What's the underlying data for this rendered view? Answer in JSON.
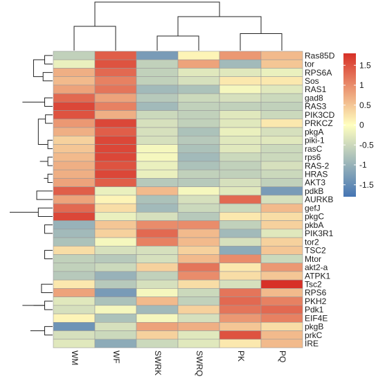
{
  "chart_data": {
    "type": "heatmap",
    "columns": [
      "WM",
      "WF",
      "SWRK",
      "SWRQ",
      "PK",
      "PQ"
    ],
    "rows": [
      "Ras85D",
      "tor",
      "RPS6A",
      "Sos",
      "RAS1",
      "gad8",
      "RAS3",
      "PIK3CD",
      "PRKCZ",
      "pkgA",
      "piki-1",
      "rasC",
      "rps6",
      "RAS-2",
      "HRAS",
      "AKT3",
      "pdkB",
      "AURKB",
      "gefJ",
      "pkgC",
      "pkbA",
      "PIK3R1",
      "tor2",
      "TSC2",
      "Mtor",
      "akt2-a",
      "ATPK1",
      "Tsc2",
      "RPS6",
      "PKH2",
      "Pdk1",
      "EIF4E",
      "pkgB",
      "prkC",
      "IRE"
    ],
    "values": [
      [
        -0.6,
        1.4,
        -1.3,
        0.1,
        0.9,
        0.6
      ],
      [
        -0.2,
        1.5,
        -0.6,
        0.8,
        -0.9,
        0.5
      ],
      [
        0.7,
        1.3,
        -0.6,
        -0.3,
        -0.3,
        -0.2
      ],
      [
        0.6,
        1.1,
        -0.6,
        -0.4,
        0.2,
        0.2
      ],
      [
        0.8,
        1.2,
        -0.9,
        -0.8,
        -0.1,
        -0.3
      ],
      [
        1.3,
        0.8,
        -0.7,
        -0.5,
        -0.4,
        -0.5
      ],
      [
        1.6,
        1.1,
        -0.9,
        -0.6,
        -0.6,
        -0.6
      ],
      [
        1.5,
        0.7,
        -0.5,
        -0.6,
        -0.3,
        -0.5
      ],
      [
        0.9,
        1.6,
        -0.4,
        -0.6,
        -0.3,
        0.2
      ],
      [
        0.7,
        1.4,
        -0.4,
        -0.8,
        -0.2,
        -0.4
      ],
      [
        0.4,
        1.6,
        -0.4,
        -0.7,
        -0.3,
        -0.3
      ],
      [
        0.5,
        1.6,
        -0.1,
        -0.8,
        -0.3,
        -0.5
      ],
      [
        0.6,
        1.6,
        -0.1,
        -0.9,
        -0.5,
        -0.5
      ],
      [
        0.7,
        1.5,
        -0.2,
        -0.8,
        -0.6,
        -0.4
      ],
      [
        0.7,
        1.6,
        -0.2,
        -0.6,
        -0.6,
        -0.5
      ],
      [
        0.8,
        1.4,
        -0.7,
        -0.7,
        -0.4,
        -0.6
      ],
      [
        1.4,
        -0.2,
        0.6,
        -0.1,
        -0.3,
        -1.3
      ],
      [
        0.8,
        0.1,
        -0.8,
        -0.4,
        1.3,
        -0.4
      ],
      [
        1.3,
        0.3,
        -0.9,
        -0.5,
        -0.5,
        0.6
      ],
      [
        1.6,
        -0.2,
        -0.4,
        -0.7,
        0.2,
        0.3
      ],
      [
        -1.0,
        0.5,
        1.0,
        1.0,
        -0.6,
        0.4
      ],
      [
        -0.9,
        0.4,
        1.3,
        0.6,
        -0.9,
        -0.3
      ],
      [
        -0.8,
        -0.1,
        1.1,
        0.6,
        -0.4,
        0.4
      ],
      [
        0.3,
        -0.4,
        -0.4,
        0.4,
        -1.1,
        0.5
      ],
      [
        -0.6,
        -0.7,
        -0.4,
        0.6,
        1.0,
        -0.5
      ],
      [
        -0.6,
        -0.5,
        0.4,
        1.2,
        0.2,
        0.9
      ],
      [
        -0.7,
        -1.0,
        -0.6,
        1.0,
        0.3,
        0.5
      ],
      [
        0.2,
        -0.7,
        -0.4,
        0.3,
        -0.4,
        1.8
      ],
      [
        0.8,
        -1.3,
        -0.1,
        -0.5,
        1.2,
        0.6
      ],
      [
        -0.3,
        -0.8,
        0.6,
        -0.6,
        1.3,
        1.1
      ],
      [
        -0.4,
        -0.1,
        -0.9,
        0.4,
        1.2,
        1.3
      ],
      [
        0.1,
        -0.8,
        -0.1,
        -0.4,
        0.9,
        1.1
      ],
      [
        -1.4,
        -0.4,
        0.8,
        0.7,
        0.5,
        0.3
      ],
      [
        -0.4,
        -0.5,
        0.4,
        -0.3,
        1.5,
        0.6
      ],
      [
        -0.3,
        -1.1,
        -0.5,
        -0.3,
        0.2,
        0.6
      ]
    ],
    "color_scale": {
      "min": -1.8,
      "max": 1.8,
      "low_color": "#4575b4",
      "mid_color": "#ffffbf",
      "high_color": "#d73027"
    },
    "legend_ticks": [
      1.5,
      1,
      0.5,
      0,
      -0.5,
      -1,
      -1.5
    ],
    "legend_tick_labels": [
      "1.5",
      "1",
      "0.5",
      "0",
      "-0.5",
      "-1",
      "-1.5"
    ],
    "legend_placement": "right",
    "row_dendrogram": {
      "nodes": [
        [
          0,
          1,
          0.5
        ],
        [
          2,
          3,
          0.6
        ],
        [
          5,
          6,
          0.5
        ],
        [
          7,
          8,
          0.45
        ],
        [
          10,
          11,
          0.3
        ],
        [
          12,
          13,
          0.3
        ],
        [
          14,
          15,
          0.3
        ],
        [
          41,
          42,
          0.55
        ],
        [
          43,
          44,
          0.6
        ],
        [
          40,
          45,
          0.8
        ],
        [
          46,
          9,
          0.7
        ],
        [
          38,
          39,
          0.9
        ],
        [
          47,
          48,
          1.1
        ],
        [
          35,
          36,
          1.2
        ],
        [
          50,
          4,
          1.3
        ],
        [
          49,
          51,
          1.6
        ],
        [
          37,
          52,
          1.9
        ],
        [
          16,
          17,
          1.0
        ],
        [
          18,
          19,
          0.9
        ],
        [
          54,
          55,
          1.7
        ],
        [
          20,
          21,
          0.5
        ],
        [
          57,
          22,
          0.7
        ],
        [
          23,
          24,
          0.5
        ],
        [
          59,
          25,
          0.8
        ],
        [
          60,
          26,
          0.9
        ],
        [
          58,
          61,
          1.5
        ],
        [
          27,
          28,
          0.7
        ],
        [
          29,
          30,
          0.5
        ],
        [
          63,
          31,
          0.8
        ],
        [
          62,
          64,
          1.2
        ],
        [
          32,
          33,
          0.5
        ],
        [
          66,
          34,
          0.8
        ],
        [
          65,
          67,
          1.4
        ],
        [
          62,
          68,
          1.9
        ],
        [
          56,
          69,
          2.3
        ],
        [
          53,
          70,
          2.7
        ]
      ]
    },
    "col_dendrogram": {
      "nodes": [
        [
          0,
          1,
          0.5
        ],
        [
          2,
          3,
          0.3
        ],
        [
          4,
          5,
          0.35
        ],
        [
          7,
          8,
          0.7
        ],
        [
          6,
          9,
          1.0
        ]
      ]
    }
  }
}
